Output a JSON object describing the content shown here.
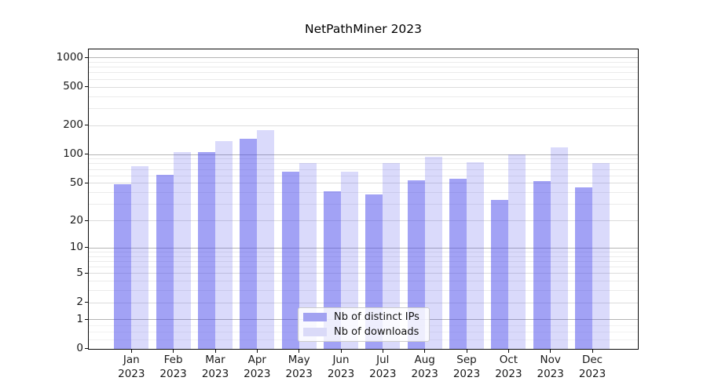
{
  "chart_data": {
    "type": "bar",
    "title": "NetPathMiner 2023",
    "xlabel": "",
    "ylabel": "",
    "yscale": "log10(value+1)",
    "yticks": [
      1000,
      500,
      200,
      100,
      50,
      20,
      10,
      5,
      2,
      1,
      0
    ],
    "ylim": [
      0,
      1200
    ],
    "grid": true,
    "legend_position": "lower center",
    "categories": [
      "Jan",
      "Feb",
      "Mar",
      "Apr",
      "May",
      "Jun",
      "Jul",
      "Aug",
      "Sep",
      "Oct",
      "Nov",
      "Dec"
    ],
    "year_label": "2023",
    "series": [
      {
        "name": "Nb of distinct IPs",
        "color": "#4646eb",
        "alpha": 0.5,
        "swatch_color": "#a2a2f1",
        "values": [
          48,
          61,
          106,
          145,
          65,
          41,
          38,
          53,
          55,
          33,
          52,
          45
        ]
      },
      {
        "name": "Nb of downloads",
        "color": "#4646eb",
        "alpha": 0.2,
        "swatch_color": "#dadaf8",
        "values": [
          75,
          105,
          137,
          178,
          81,
          65,
          81,
          94,
          83,
          99,
          117,
          81
        ]
      }
    ]
  }
}
